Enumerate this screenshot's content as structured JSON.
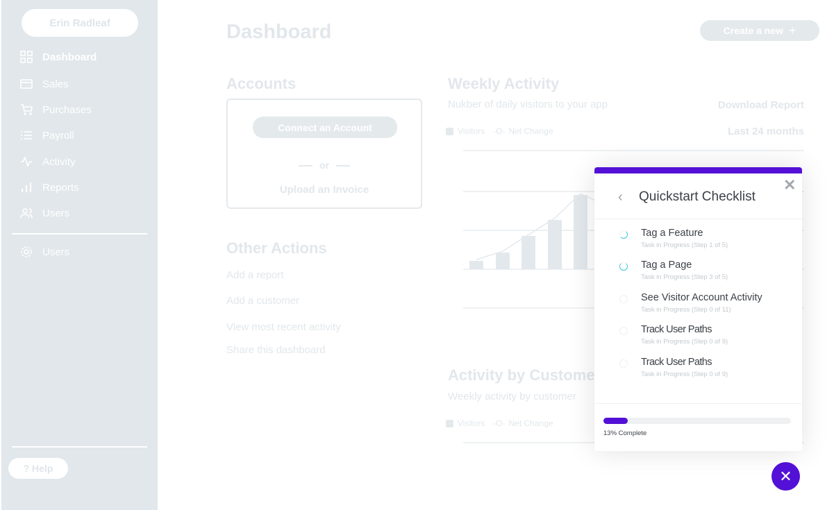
{
  "sidebar": {
    "user": "Erin Radleaf",
    "items": [
      {
        "label": "Dashboard",
        "icon": "grid-icon"
      },
      {
        "label": "Sales",
        "icon": "credit-card-icon"
      },
      {
        "label": "Purchases",
        "icon": "cart-icon"
      },
      {
        "label": "Payroll",
        "icon": "list-icon"
      },
      {
        "label": "Activity",
        "icon": "activity-icon"
      },
      {
        "label": "Reports",
        "icon": "bar-chart-icon"
      },
      {
        "label": "Users",
        "icon": "users-icon"
      }
    ],
    "settings": {
      "label": "Users",
      "icon": "gear-icon"
    },
    "help": "? Help"
  },
  "header": {
    "title": "Dashboard",
    "create": "Create a new",
    "create_icon": "+"
  },
  "accounts": {
    "title": "Accounts",
    "connect": "Connect an Account",
    "or": "or",
    "upload": "Upload an Invoice"
  },
  "other": {
    "title": "Other Actions",
    "links": [
      "Add a report",
      "Add a customer",
      "View most recent activity",
      "Share this dashboard"
    ]
  },
  "weekly": {
    "title": "Weekly Activity",
    "subtitle": "Nukber of daily visitors to your app",
    "download": "Download Report",
    "range": "Last 24 months",
    "legend": [
      "Visitors",
      "Net Change"
    ]
  },
  "customer": {
    "title": "Activity by Customer",
    "subtitle": "Weekly activity by customer",
    "legend": [
      "Visitors",
      "Net Change"
    ]
  },
  "chart_data": {
    "type": "bar",
    "values": [
      1,
      2,
      4,
      6,
      9
    ],
    "line": true
  },
  "checklist": {
    "title": "Quickstart Checklist",
    "tasks": [
      {
        "title": "Tag a Feature",
        "status": "Task in Progress (Step 1 of 5)"
      },
      {
        "title": "Tag a Page",
        "status": "Task in Progress (Step 3 of 5)"
      },
      {
        "title": "See Visitor Account Activity",
        "status": "Task in Progress (Step 0 of 11)"
      },
      {
        "title": "Track User Paths",
        "status": "Task in Progress (Step 0 of 9)"
      },
      {
        "title": "Track User Paths",
        "status": "Task in Progress (Step 0 of 9)"
      }
    ],
    "progress_percent": 13,
    "progress_label": "13% Complete"
  },
  "colors": {
    "accent": "#5310d6",
    "progress_ring": "#3cc6dd",
    "sidebar": "#e1e7eb"
  }
}
